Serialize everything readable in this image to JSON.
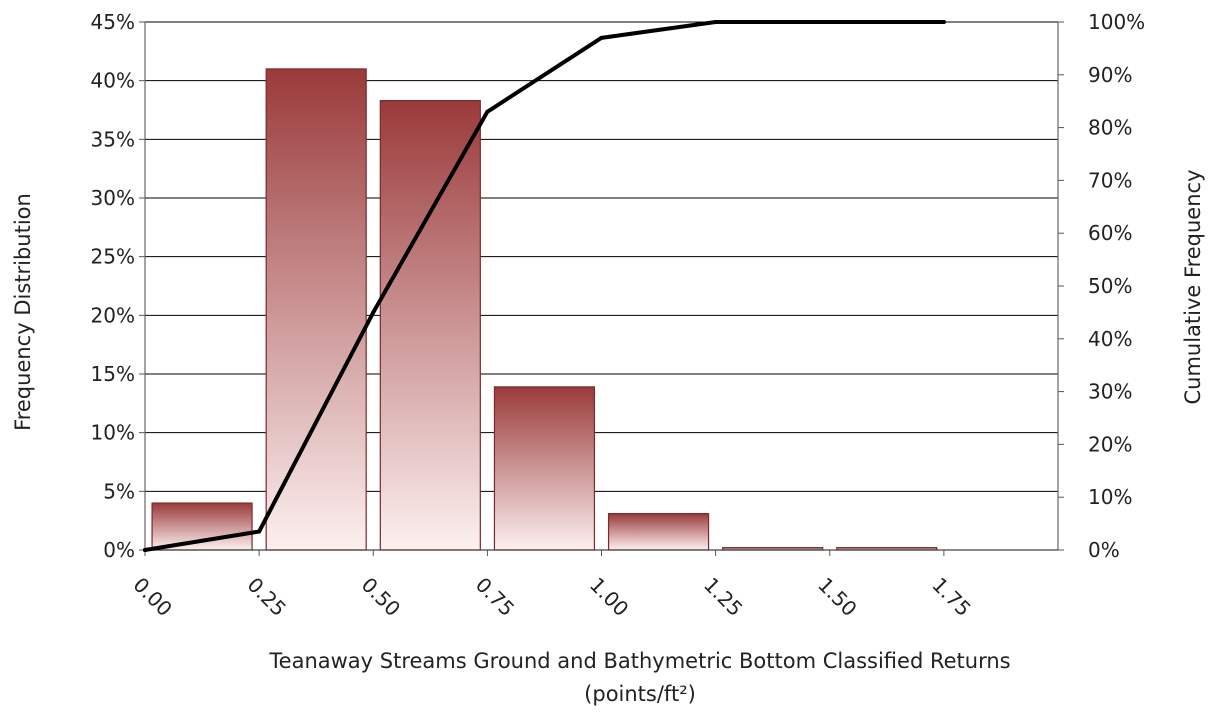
{
  "chart_data": {
    "type": "bar",
    "categories": [
      "0.00",
      "0.25",
      "0.50",
      "0.75",
      "1.00",
      "1.25",
      "1.50",
      "1.75"
    ],
    "series": [
      {
        "axis": "left",
        "type": "bar",
        "values": [
          null,
          4.0,
          41.0,
          38.3,
          13.9,
          3.1,
          0.2,
          0.2
        ]
      },
      {
        "axis": "right",
        "type": "line",
        "values": [
          0,
          3.5,
          45.0,
          83.0,
          97.0,
          100.0,
          100.0,
          100.0
        ]
      }
    ],
    "xlabel": "Teanaway Streams Ground and Bathymetric Bottom Classified Returns (points/ft²)",
    "ylabel": "Frequency Distribution",
    "y2label": "Cumulative Frequency",
    "ylim": [
      0,
      45
    ],
    "y2lim": [
      0,
      100
    ],
    "yticks": [
      "0%",
      "5%",
      "10%",
      "15%",
      "20%",
      "25%",
      "30%",
      "35%",
      "40%",
      "45%"
    ],
    "y2ticks": [
      "0%",
      "10%",
      "20%",
      "30%",
      "40%",
      "50%",
      "60%",
      "70%",
      "80%",
      "90%",
      "100%"
    ],
    "xlabel_lines": [
      "Teanaway Streams Ground and Bathymetric Bottom Classified Returns",
      "(points/ft²)"
    ],
    "grid": true,
    "colors": {
      "bar_top": "#9a3a3a",
      "bar_bottom": "#fdf0f0",
      "bar_edge": "#7a2a2a",
      "line": "#000000",
      "grid": "#000000"
    }
  }
}
